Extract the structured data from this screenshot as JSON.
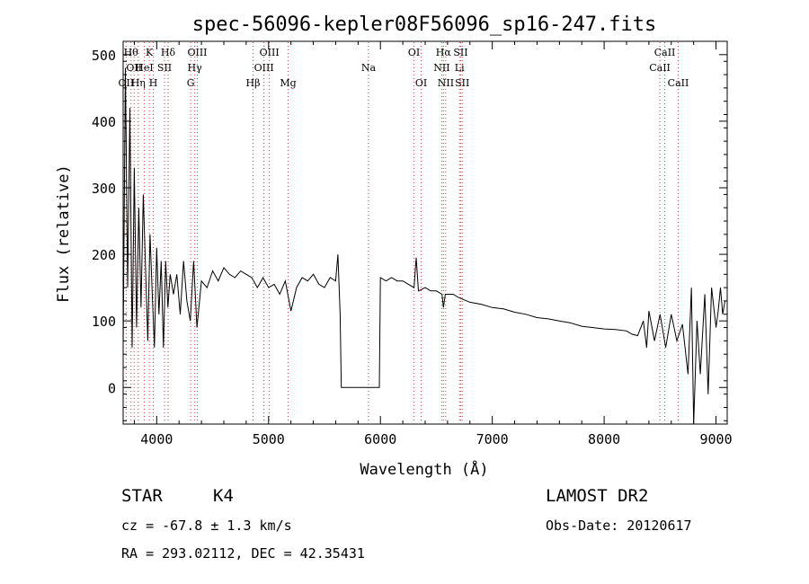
{
  "title": "spec-56096-kepler08F56096_sp16-247.fits",
  "chart_data": {
    "type": "line",
    "xlabel": "Wavelength (Å)",
    "ylabel": "Flux (relative)",
    "xlim": [
      3700,
      9100
    ],
    "ylim": [
      -55,
      520
    ],
    "xticks": [
      "4000",
      "5000",
      "6000",
      "7000",
      "8000",
      "9000"
    ],
    "yticks": [
      "0",
      "100",
      "200",
      "300",
      "400",
      "500"
    ],
    "series": [
      {
        "points": [
          [
            3700,
            60
          ],
          [
            3720,
            480
          ],
          [
            3740,
            150
          ],
          [
            3760,
            420
          ],
          [
            3780,
            60
          ],
          [
            3800,
            330
          ],
          [
            3820,
            90
          ],
          [
            3840,
            270
          ],
          [
            3860,
            120
          ],
          [
            3880,
            290
          ],
          [
            3900,
            180
          ],
          [
            3920,
            70
          ],
          [
            3940,
            230
          ],
          [
            3960,
            140
          ],
          [
            3980,
            60
          ],
          [
            4000,
            210
          ],
          [
            4020,
            110
          ],
          [
            4040,
            190
          ],
          [
            4060,
            60
          ],
          [
            4080,
            190
          ],
          [
            4100,
            120
          ],
          [
            4120,
            170
          ],
          [
            4150,
            140
          ],
          [
            4180,
            170
          ],
          [
            4210,
            110
          ],
          [
            4240,
            190
          ],
          [
            4270,
            130
          ],
          [
            4300,
            100
          ],
          [
            4330,
            190
          ],
          [
            4360,
            90
          ],
          [
            4400,
            160
          ],
          [
            4450,
            150
          ],
          [
            4500,
            175
          ],
          [
            4550,
            160
          ],
          [
            4600,
            180
          ],
          [
            4650,
            170
          ],
          [
            4700,
            165
          ],
          [
            4750,
            175
          ],
          [
            4800,
            170
          ],
          [
            4850,
            165
          ],
          [
            4900,
            150
          ],
          [
            4950,
            165
          ],
          [
            5000,
            150
          ],
          [
            5050,
            155
          ],
          [
            5100,
            140
          ],
          [
            5150,
            160
          ],
          [
            5200,
            115
          ],
          [
            5250,
            150
          ],
          [
            5300,
            165
          ],
          [
            5350,
            160
          ],
          [
            5400,
            170
          ],
          [
            5450,
            155
          ],
          [
            5500,
            150
          ],
          [
            5550,
            165
          ],
          [
            5600,
            160
          ],
          [
            5620,
            200
          ],
          [
            5640,
            110
          ],
          [
            5650,
            0
          ],
          [
            5700,
            0
          ],
          [
            5800,
            0
          ],
          [
            5900,
            0
          ],
          [
            5990,
            0
          ],
          [
            6000,
            165
          ],
          [
            6050,
            160
          ],
          [
            6100,
            165
          ],
          [
            6150,
            160
          ],
          [
            6200,
            160
          ],
          [
            6250,
            155
          ],
          [
            6300,
            150
          ],
          [
            6320,
            195
          ],
          [
            6340,
            145
          ],
          [
            6400,
            150
          ],
          [
            6450,
            145
          ],
          [
            6500,
            145
          ],
          [
            6550,
            140
          ],
          [
            6563,
            120
          ],
          [
            6580,
            140
          ],
          [
            6650,
            140
          ],
          [
            6700,
            135
          ],
          [
            6800,
            128
          ],
          [
            6900,
            125
          ],
          [
            7000,
            120
          ],
          [
            7100,
            118
          ],
          [
            7200,
            113
          ],
          [
            7300,
            110
          ],
          [
            7400,
            105
          ],
          [
            7500,
            103
          ],
          [
            7600,
            100
          ],
          [
            7700,
            97
          ],
          [
            7800,
            92
          ],
          [
            7900,
            90
          ],
          [
            8000,
            88
          ],
          [
            8100,
            87
          ],
          [
            8200,
            85
          ],
          [
            8250,
            80
          ],
          [
            8300,
            78
          ],
          [
            8350,
            100
          ],
          [
            8380,
            60
          ],
          [
            8400,
            115
          ],
          [
            8450,
            70
          ],
          [
            8500,
            110
          ],
          [
            8550,
            60
          ],
          [
            8600,
            110
          ],
          [
            8650,
            70
          ],
          [
            8700,
            95
          ],
          [
            8750,
            20
          ],
          [
            8780,
            150
          ],
          [
            8800,
            -55
          ],
          [
            8830,
            100
          ],
          [
            8860,
            20
          ],
          [
            8900,
            140
          ],
          [
            8930,
            -10
          ],
          [
            8960,
            150
          ],
          [
            9000,
            90
          ],
          [
            9020,
            115
          ],
          [
            9040,
            150
          ],
          [
            9060,
            110
          ],
          [
            9080,
            130
          ]
        ]
      }
    ],
    "line_markers": [
      {
        "wl": 3727,
        "labels": [
          {
            "text": "OII",
            "row": 3
          }
        ]
      },
      {
        "wl": 3770,
        "labels": [
          {
            "text": "Hθ",
            "row": 1
          }
        ]
      },
      {
        "wl": 3798,
        "labels": [
          {
            "text": "OII",
            "row": 2
          }
        ]
      },
      {
        "wl": 3835,
        "labels": [
          {
            "text": "Hη",
            "row": 3
          }
        ]
      },
      {
        "wl": 3889,
        "labels": [
          {
            "text": "HeI",
            "row": 2
          }
        ]
      },
      {
        "wl": 3934,
        "labels": [
          {
            "text": "K",
            "row": 1
          }
        ]
      },
      {
        "wl": 3970,
        "labels": [
          {
            "text": "H",
            "row": 3
          }
        ]
      },
      {
        "wl": 4070,
        "labels": [
          {
            "text": "SII",
            "row": 2
          }
        ]
      },
      {
        "wl": 4102,
        "labels": [
          {
            "text": "Hδ",
            "row": 1
          }
        ]
      },
      {
        "wl": 4304,
        "labels": [
          {
            "text": "G",
            "row": 3
          }
        ]
      },
      {
        "wl": 4340,
        "labels": [
          {
            "text": "Hγ",
            "row": 2
          }
        ]
      },
      {
        "wl": 4363,
        "labels": [
          {
            "text": "OIII",
            "row": 1
          }
        ]
      },
      {
        "wl": 4861,
        "labels": [
          {
            "text": "Hβ",
            "row": 3
          }
        ]
      },
      {
        "wl": 4959,
        "labels": [
          {
            "text": "OIII",
            "row": 2
          }
        ]
      },
      {
        "wl": 5007,
        "labels": [
          {
            "text": "OIII",
            "row": 1
          }
        ]
      },
      {
        "wl": 5175,
        "labels": [
          {
            "text": "Mg",
            "row": 3
          }
        ]
      },
      {
        "wl": 5893,
        "labels": [
          {
            "text": "Na",
            "row": 2
          }
        ]
      },
      {
        "wl": 6300,
        "labels": [
          {
            "text": "OI",
            "row": 1
          }
        ]
      },
      {
        "wl": 6364,
        "labels": [
          {
            "text": "OI",
            "row": 3
          }
        ]
      },
      {
        "wl": 6548,
        "labels": [
          {
            "text": "NII",
            "row": 2
          }
        ]
      },
      {
        "wl": 6563,
        "labels": [
          {
            "text": "Hα",
            "row": 1
          }
        ]
      },
      {
        "wl": 6584,
        "labels": [
          {
            "text": "NII",
            "row": 3
          }
        ]
      },
      {
        "wl": 6707,
        "labels": [
          {
            "text": "Li",
            "row": 2
          }
        ]
      },
      {
        "wl": 6717,
        "labels": [
          {
            "text": "SII",
            "row": 1
          }
        ]
      },
      {
        "wl": 6731,
        "labels": [
          {
            "text": "SII",
            "row": 3
          }
        ]
      },
      {
        "wl": 8498,
        "labels": [
          {
            "text": "CaII",
            "row": 2
          }
        ]
      },
      {
        "wl": 8542,
        "labels": [
          {
            "text": "CaII",
            "row": 1
          }
        ]
      },
      {
        "wl": 8662,
        "labels": [
          {
            "text": "CaII",
            "row": 3
          }
        ]
      }
    ]
  },
  "info": {
    "object_class": "STAR",
    "subclass": "K4",
    "survey": "LAMOST DR2",
    "redshift": "cz = -67.8 ± 1.3 km/s",
    "obs_date": "Obs-Date: 20120617",
    "coords": "RA = 293.02112, DEC =  42.35431"
  },
  "colors": {
    "axis": "#000000",
    "spectrum": "#000000",
    "marker": "#d04040"
  }
}
